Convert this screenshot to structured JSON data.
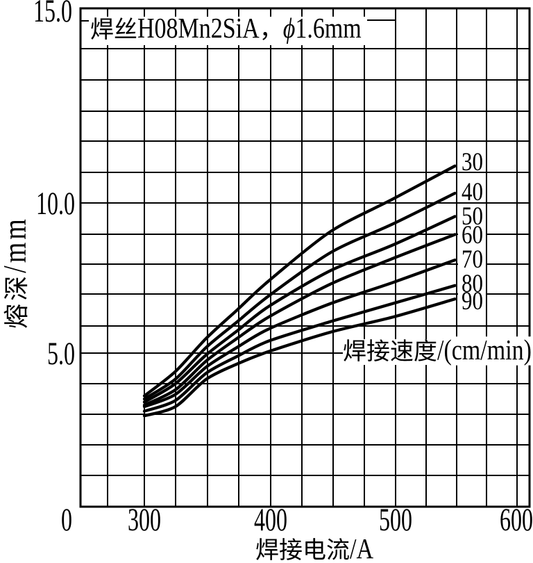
{
  "chart_data": {
    "type": "line",
    "title": "焊丝H08Mn2SiA，ϕ1.6mm",
    "title_parts": {
      "cjk": "焊丝",
      "latin": "H08Mn2SiA",
      "comma": "，",
      "phi": "ϕ",
      "diameter": "1.6mm"
    },
    "xlabel": "焊接电流/A",
    "xlabel_parts": {
      "cjk": "焊接电流",
      "unit": "/A"
    },
    "ylabel": "熔深/mm",
    "ylabel_parts": {
      "cjk": "熔深",
      "unit": "/mm"
    },
    "series_group_label": "焊接速度/(cm/min)",
    "series_group_label_parts": {
      "cjk": "焊接速度",
      "unit": "/(cm/min)"
    },
    "x_tick_labels": [
      "0",
      "300",
      "400",
      "500",
      "600"
    ],
    "x_tick_values": [
      0,
      300,
      400,
      500,
      600
    ],
    "y_tick_labels": [
      "15.0",
      "10.0",
      "5.0"
    ],
    "y_tick_values": [
      15,
      10,
      5
    ],
    "xlim": [
      0,
      600
    ],
    "ylim": [
      0,
      15
    ],
    "grid": true,
    "axis_note": "x axis compressed between 0 and 300 A",
    "x": [
      300,
      325,
      350,
      375,
      400,
      450,
      500,
      550
    ],
    "series": [
      {
        "name": "30",
        "values": [
          3.6,
          4.4,
          5.5,
          6.45,
          7.4,
          9.05,
          10.1,
          10.95
        ]
      },
      {
        "name": "40",
        "values": [
          3.5,
          4.15,
          5.2,
          6.05,
          6.9,
          8.35,
          9.3,
          10.25
        ]
      },
      {
        "name": "50",
        "values": [
          3.4,
          4.0,
          4.95,
          5.75,
          6.55,
          7.75,
          8.6,
          9.55
        ]
      },
      {
        "name": "60",
        "values": [
          3.3,
          3.8,
          4.75,
          5.5,
          6.2,
          7.3,
          8.15,
          8.95
        ]
      },
      {
        "name": "70",
        "values": [
          3.25,
          3.65,
          4.55,
          5.2,
          5.8,
          6.65,
          7.35,
          8.1
        ]
      },
      {
        "name": "80",
        "values": [
          3.1,
          3.45,
          4.35,
          4.9,
          5.4,
          6.05,
          6.65,
          7.25
        ]
      },
      {
        "name": "90",
        "values": [
          2.95,
          3.25,
          4.15,
          4.65,
          5.05,
          5.7,
          6.2,
          6.8
        ]
      }
    ]
  }
}
